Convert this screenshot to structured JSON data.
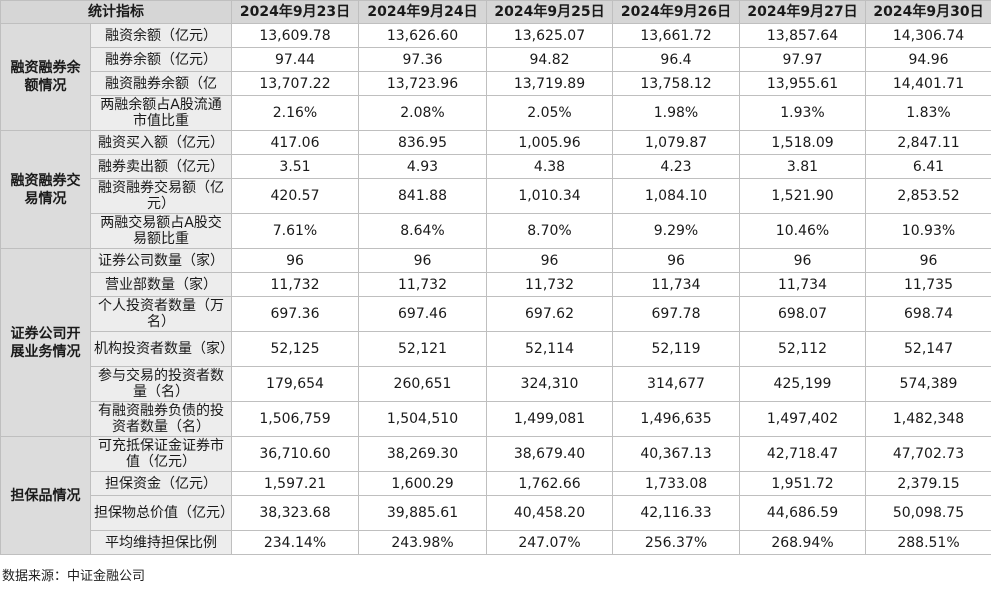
{
  "table": {
    "corner": "统计指标",
    "dates": [
      "2024年9月23日",
      "2024年9月24日",
      "2024年9月25日",
      "2024年9月26日",
      "2024年9月27日",
      "2024年9月30日"
    ],
    "groups": [
      {
        "name": "融资融券余额情况",
        "rows": [
          {
            "label": "融资余额（亿元）",
            "values": [
              "13,609.78",
              "13,626.60",
              "13,625.07",
              "13,661.72",
              "13,857.64",
              "14,306.74"
            ]
          },
          {
            "label": "融券余额（亿元）",
            "values": [
              "97.44",
              "97.36",
              "94.82",
              "96.4",
              "97.97",
              "94.96"
            ]
          },
          {
            "label": "融资融券余额（亿",
            "values": [
              "13,707.22",
              "13,723.96",
              "13,719.89",
              "13,758.12",
              "13,955.61",
              "14,401.71"
            ]
          },
          {
            "label": "两融余额占A股流通市值比重",
            "values": [
              "2.16%",
              "2.08%",
              "2.05%",
              "1.98%",
              "1.93%",
              "1.83%"
            ]
          }
        ]
      },
      {
        "name": "融资融券交易情况",
        "rows": [
          {
            "label": "融资买入额（亿元）",
            "values": [
              "417.06",
              "836.95",
              "1,005.96",
              "1,079.87",
              "1,518.09",
              "2,847.11"
            ]
          },
          {
            "label": "融券卖出额（亿元）",
            "values": [
              "3.51",
              "4.93",
              "4.38",
              "4.23",
              "3.81",
              "6.41"
            ]
          },
          {
            "label": "融资融券交易额（亿元）",
            "values": [
              "420.57",
              "841.88",
              "1,010.34",
              "1,084.10",
              "1,521.90",
              "2,853.52"
            ]
          },
          {
            "label": "两融交易额占A股交易额比重",
            "values": [
              "7.61%",
              "8.64%",
              "8.70%",
              "9.29%",
              "10.46%",
              "10.93%"
            ]
          }
        ]
      },
      {
        "name": "证券公司开展业务情况",
        "rows": [
          {
            "label": "证券公司数量（家）",
            "values": [
              "96",
              "96",
              "96",
              "96",
              "96",
              "96"
            ]
          },
          {
            "label": "营业部数量（家）",
            "values": [
              "11,732",
              "11,732",
              "11,732",
              "11,734",
              "11,734",
              "11,735"
            ]
          },
          {
            "label": "个人投资者数量（万名）",
            "values": [
              "697.36",
              "697.46",
              "697.62",
              "697.78",
              "698.07",
              "698.74"
            ]
          },
          {
            "label": "机构投资者数量（家）",
            "values": [
              "52,125",
              "52,121",
              "52,114",
              "52,119",
              "52,112",
              "52,147"
            ]
          },
          {
            "label": "参与交易的投资者数量（名）",
            "values": [
              "179,654",
              "260,651",
              "324,310",
              "314,677",
              "425,199",
              "574,389"
            ]
          },
          {
            "label": "有融资融券负债的投资者数量（名）",
            "values": [
              "1,506,759",
              "1,504,510",
              "1,499,081",
              "1,496,635",
              "1,497,402",
              "1,482,348"
            ]
          }
        ]
      },
      {
        "name": "担保品情况",
        "rows": [
          {
            "label": "可充抵保证金证券市值（亿元）",
            "values": [
              "36,710.60",
              "38,269.30",
              "38,679.40",
              "40,367.13",
              "42,718.47",
              "47,702.73"
            ]
          },
          {
            "label": "担保资金（亿元）",
            "values": [
              "1,597.21",
              "1,600.29",
              "1,762.66",
              "1,733.08",
              "1,951.72",
              "2,379.15"
            ]
          },
          {
            "label": "担保物总价值（亿元）",
            "values": [
              "38,323.68",
              "39,885.61",
              "40,458.20",
              "42,116.33",
              "44,686.59",
              "50,098.75"
            ]
          },
          {
            "label": "平均维持担保比例",
            "values": [
              "234.14%",
              "243.98%",
              "247.07%",
              "256.37%",
              "268.94%",
              "288.51%"
            ]
          }
        ]
      }
    ]
  },
  "source": "数据来源：中证金融公司"
}
